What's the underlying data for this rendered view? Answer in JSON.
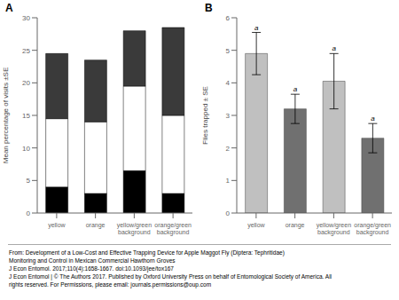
{
  "chart_data": [
    {
      "type": "bar",
      "title": "A",
      "stacked": true,
      "grid": false,
      "categories": [
        "yellow",
        "orange",
        "yellow/green\nbackground",
        "orange/green\nbackground"
      ],
      "series": [
        {
          "color": "black",
          "values": [
            4.0,
            3.0,
            6.5,
            3.0
          ]
        },
        {
          "color": "white",
          "values": [
            10.5,
            11.0,
            13.0,
            12.0
          ]
        },
        {
          "color": "#3a3a3a",
          "values": [
            10.0,
            9.5,
            8.5,
            13.5
          ]
        }
      ],
      "ylim": [
        0,
        30
      ],
      "yticks": [
        0,
        5,
        10,
        15,
        20,
        25,
        30
      ],
      "ylabel": "Mean percentage of visits ±SE"
    },
    {
      "type": "bar",
      "title": "B",
      "grid": false,
      "categories": [
        "yellow",
        "orange",
        "yellow/green\nbackground",
        "orange/green\nbackground"
      ],
      "values": [
        4.9,
        3.2,
        4.05,
        2.3
      ],
      "errors": [
        0.65,
        0.45,
        0.85,
        0.45
      ],
      "colors": [
        "#c0c0c0",
        "#707070",
        "#c0c0c0",
        "#707070"
      ],
      "annotations": [
        "a",
        "a",
        "a",
        "a"
      ],
      "ylim": [
        0,
        6
      ],
      "yticks": [
        0,
        1,
        2,
        3,
        4,
        5,
        6
      ],
      "ylabel": "Flies trapped ± SE"
    }
  ],
  "annotations": [
    "From: Development of a Low-Cost and Effective Trapping Device for Apple Maggot Fly (Diptera: Tephritidae)",
    "Monitoring and Control in Mexican Commercial Hawthorn Groves",
    "J Econ Entomol. 2017;110(4):1658-1667. doi:10.1093/jee/tox167",
    "J Econ Entomol | © The Authors 2017. Published by Oxford University Press on behalf of Entomological Society of America. All",
    "rights reserved. For Permissions, please email: journals.permissions@oup.com"
  ]
}
